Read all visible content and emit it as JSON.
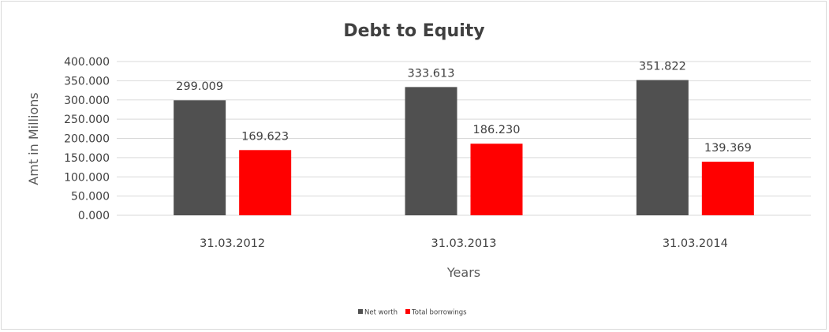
{
  "chart_data": {
    "type": "bar",
    "title": "Debt to Equity",
    "xlabel": "Years",
    "ylabel": "Amt in Millions",
    "categories": [
      "31.03.2012",
      "31.03.2013",
      "31.03.2014"
    ],
    "series": [
      {
        "name": "Net worth",
        "values": [
          299.009,
          333.613,
          351.822
        ],
        "color": "#505050",
        "labels": [
          "299.009",
          "333.613",
          "351.822"
        ]
      },
      {
        "name": "Total borrowings",
        "values": [
          169.623,
          186.23,
          139.369
        ],
        "color": "#ff0000",
        "labels": [
          "169.623",
          "186.230",
          "139.369"
        ]
      }
    ],
    "ylim": [
      0,
      400
    ],
    "yticks": [
      "0.000",
      "50.000",
      "100.000",
      "150.000",
      "200.000",
      "250.000",
      "300.000",
      "350.000",
      "400.000"
    ],
    "grid": true,
    "legend": "bottom"
  }
}
